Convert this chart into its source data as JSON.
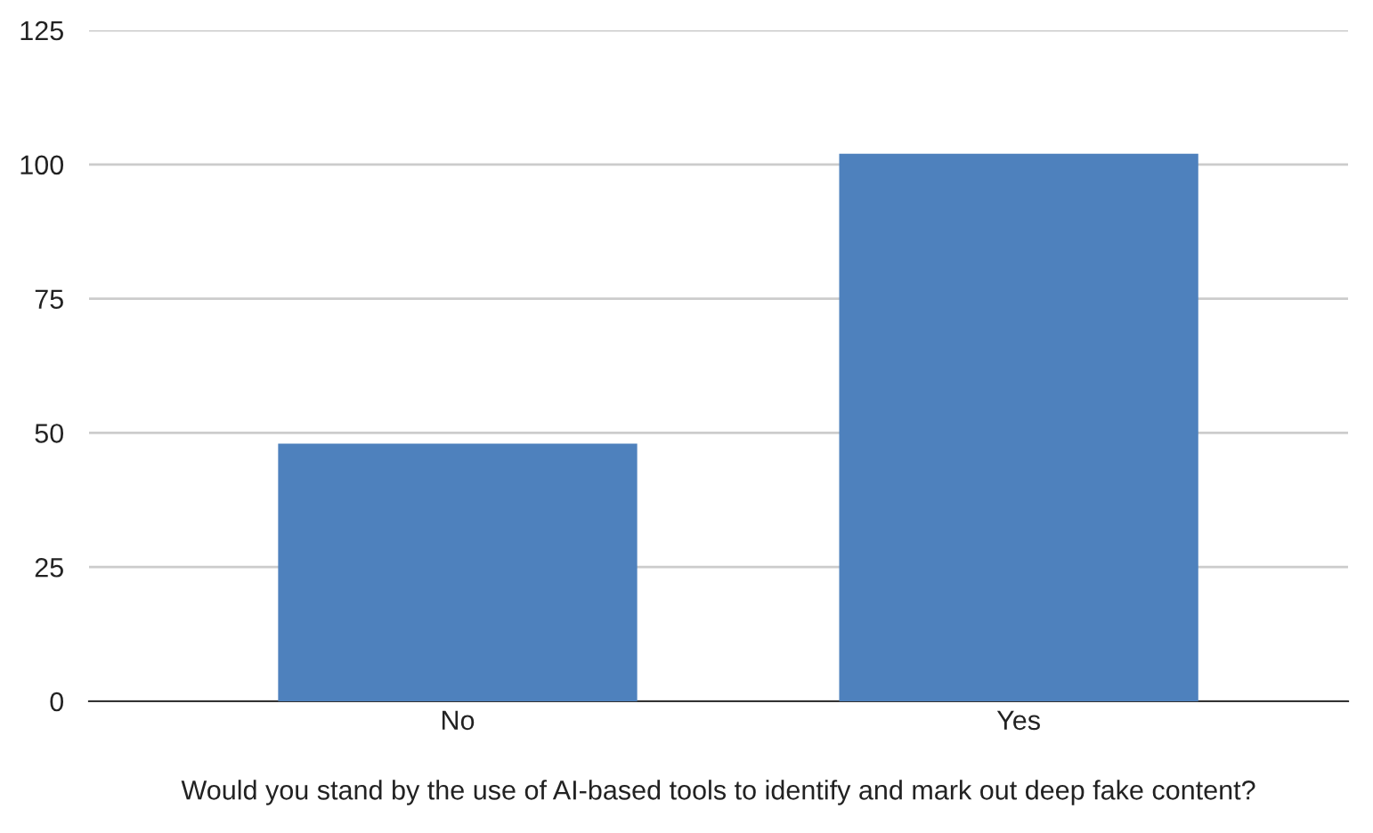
{
  "chart_data": {
    "type": "bar",
    "xlabel": "Would you stand by the use of AI-based tools to identify and mark out deep fake content?",
    "categories": [
      "No",
      "Yes"
    ],
    "values": [
      48,
      102
    ],
    "color": "#4e81bd",
    "ylim": [
      0,
      125
    ],
    "yticks": [
      0,
      25,
      50,
      75,
      100,
      125
    ],
    "grid": "y"
  }
}
